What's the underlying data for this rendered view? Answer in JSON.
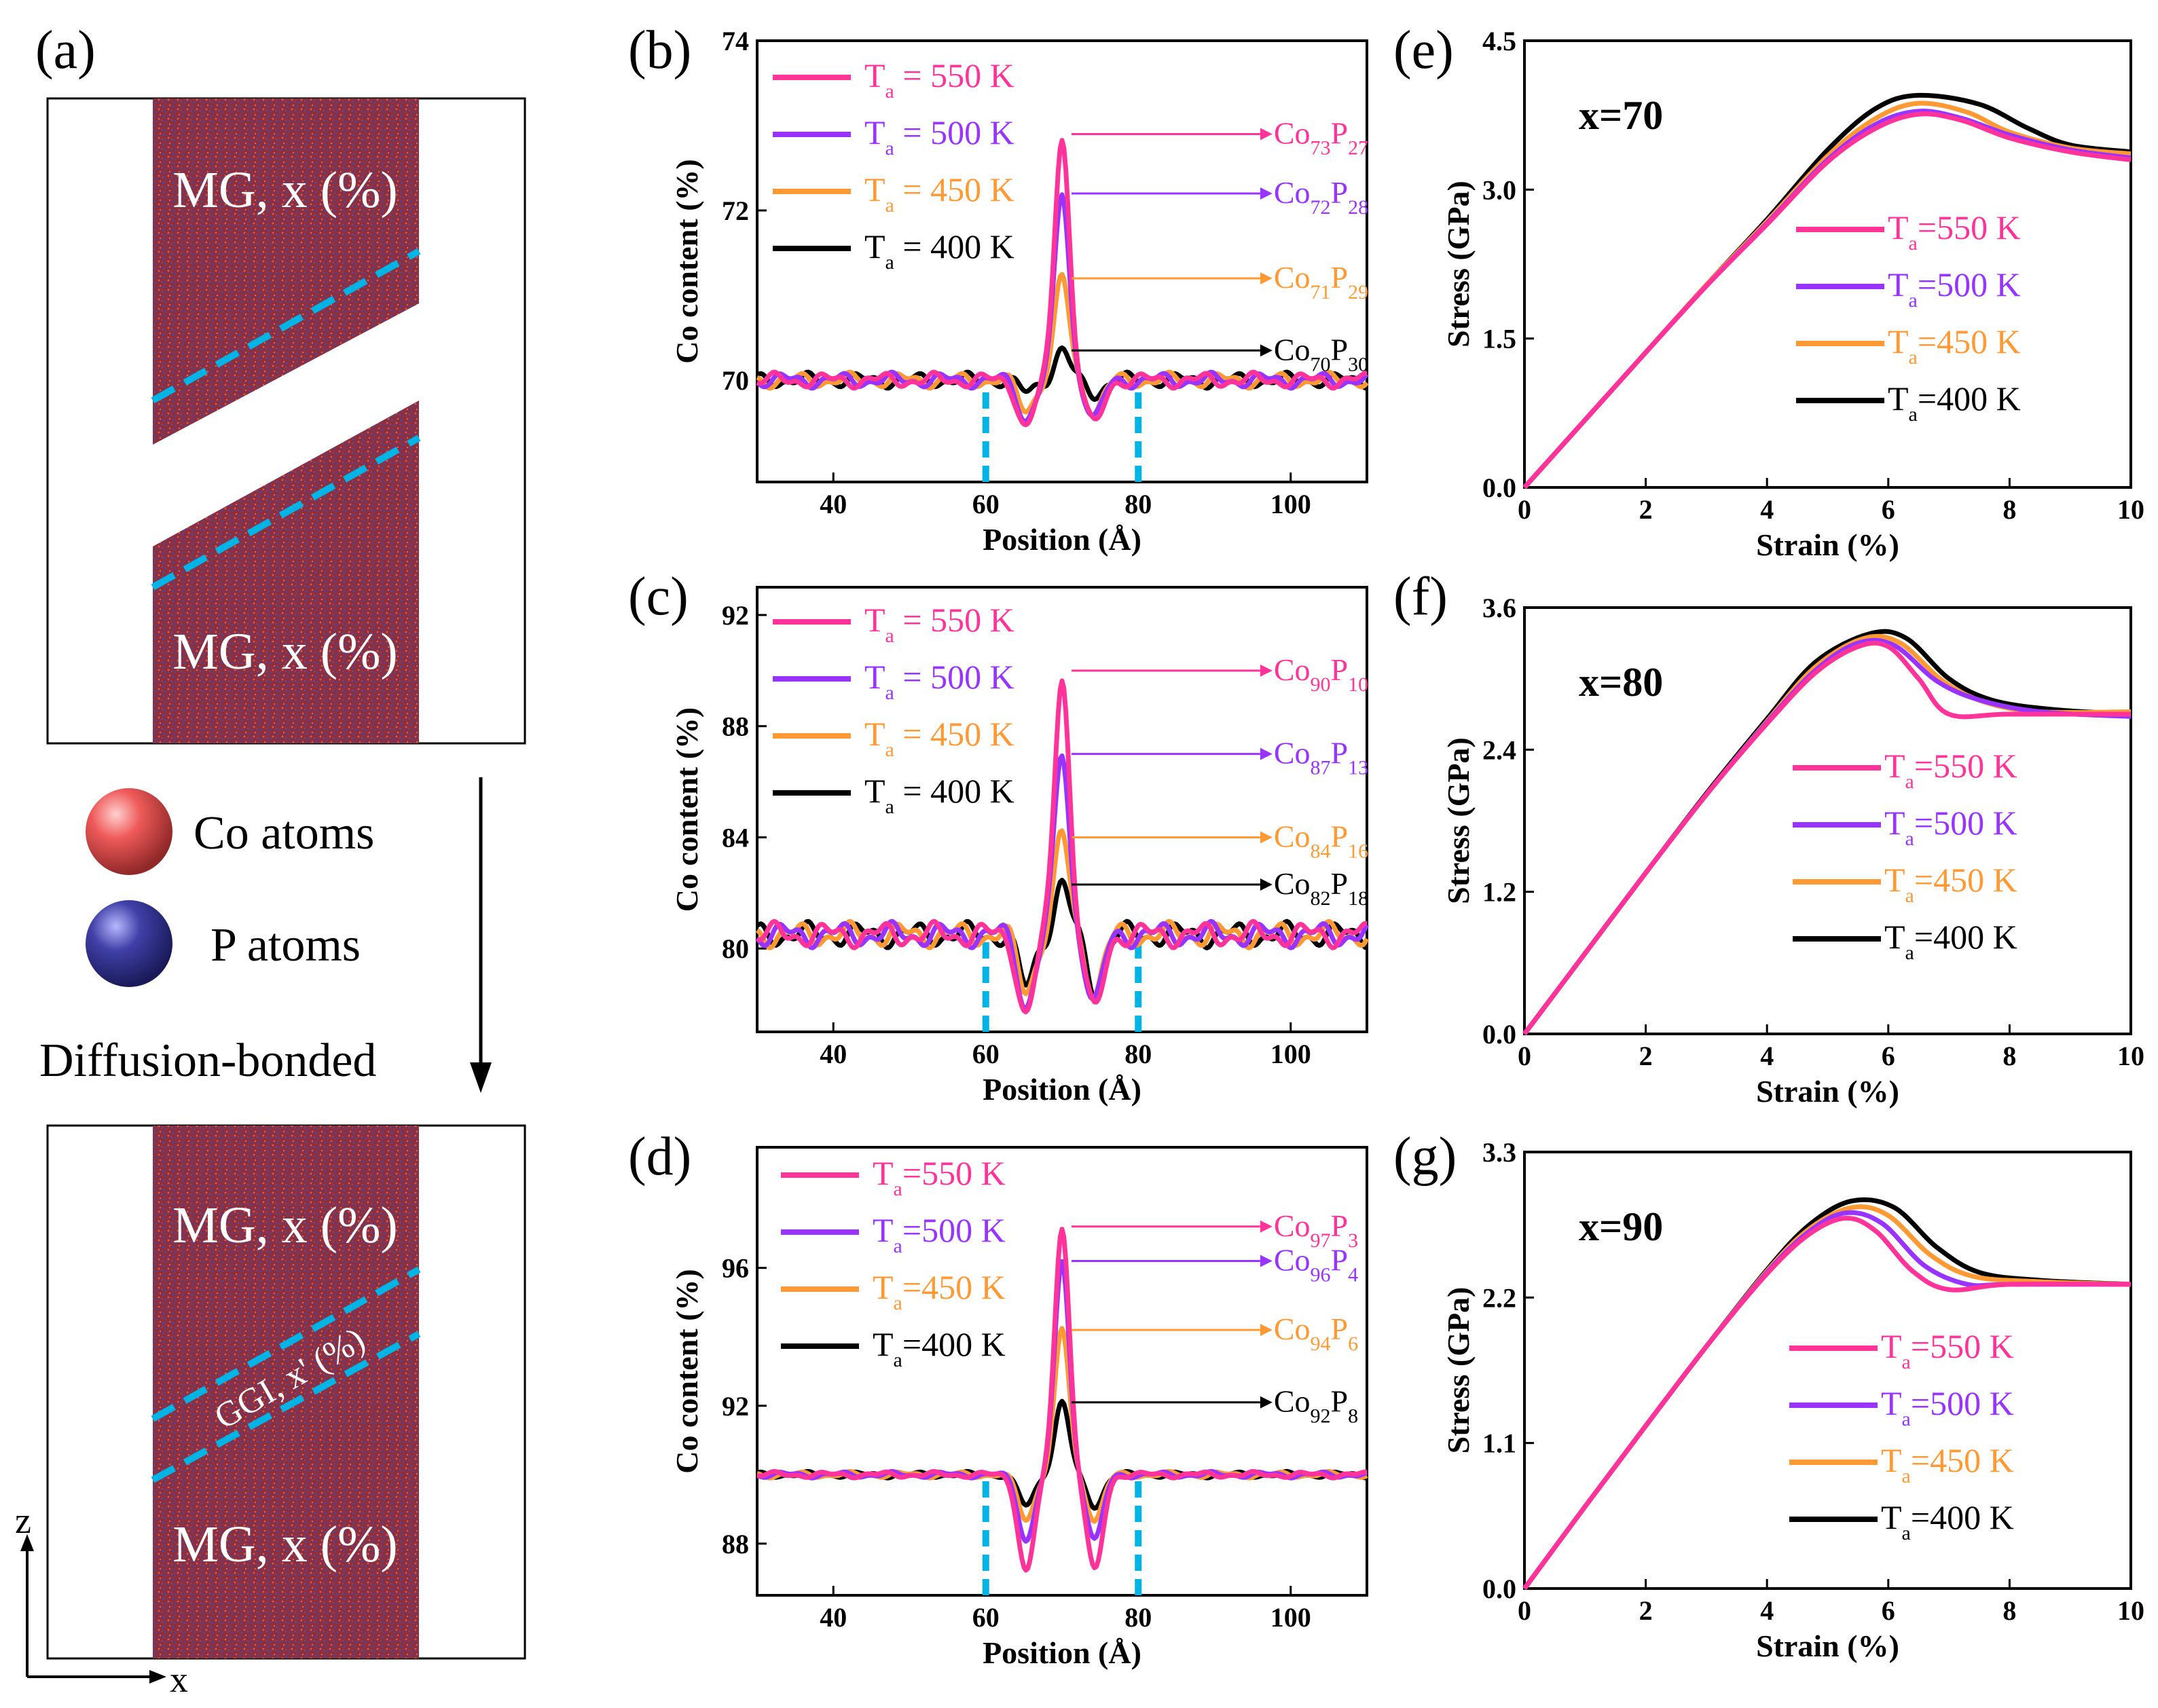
{
  "colors": {
    "T550": "#ff3399",
    "T500": "#9933ff",
    "T450": "#ff9933",
    "T400": "#000000",
    "dash": "#00b4e6",
    "mg": "#8c3040",
    "co": "#ef5a5a",
    "p": "#4040a8"
  },
  "schematic": {
    "panel_label": "(a)",
    "top_labels": [
      "MG, x (%)",
      "MG, x (%)"
    ],
    "legend": [
      {
        "label": "Co atoms",
        "icon": "co-atom-icon"
      },
      {
        "label": "P atoms",
        "icon": "p-atom-icon"
      }
    ],
    "process_label": "Diffusion-bonded",
    "bottom_labels": [
      "MG, x (%)",
      "GGI, x' (%)",
      "MG, x (%)"
    ],
    "axes": {
      "z": "z",
      "x": "x"
    }
  },
  "chart_data": [
    {
      "id": "b",
      "panel_label": "(b)",
      "type": "line",
      "xlabel": "Position (Å)",
      "ylabel": "Co content (%)",
      "xlim": [
        30,
        110
      ],
      "ylim": [
        68.8,
        74
      ],
      "xticks": [
        40,
        60,
        80,
        100
      ],
      "yticks": [
        70,
        72,
        74
      ],
      "legend": [
        {
          "key": "T550",
          "T": "T",
          "sub": "a",
          "text": " = 550 K"
        },
        {
          "key": "T500",
          "T": "T",
          "sub": "a",
          "text": " = 500 K"
        },
        {
          "key": "T450",
          "T": "T",
          "sub": "a",
          "text": " = 450 K"
        },
        {
          "key": "T400",
          "T": "T",
          "sub": "a",
          "text": " = 400 K"
        }
      ],
      "base": 70,
      "peaks": {
        "T550": 72.9,
        "T500": 72.2,
        "T450": 71.2,
        "T400": 70.35
      },
      "dips": {
        "T550": 69.45,
        "T500": 69.55,
        "T450": 69.65,
        "T400": 69.85
      },
      "wob": 0.06,
      "dashes": [
        60,
        80
      ],
      "annotations": [
        {
          "key": "T550",
          "y": 72.9,
          "co": "73",
          "p": "27"
        },
        {
          "key": "T500",
          "y": 72.2,
          "co": "72",
          "p": "28"
        },
        {
          "key": "T450",
          "y": 71.2,
          "co": "71",
          "p": "29"
        },
        {
          "key": "T400",
          "y": 70.35,
          "co": "70",
          "p": "30"
        }
      ]
    },
    {
      "id": "c",
      "panel_label": "(c)",
      "type": "line",
      "xlabel": "Position (Å)",
      "ylabel": "Co content (%)",
      "xlim": [
        30,
        110
      ],
      "ylim": [
        77,
        93
      ],
      "xticks": [
        40,
        60,
        80,
        100
      ],
      "yticks": [
        80,
        84,
        88,
        92
      ],
      "legend": [
        {
          "key": "T550",
          "T": "T",
          "sub": "a",
          "text": " = 550 K"
        },
        {
          "key": "T500",
          "T": "T",
          "sub": "a",
          "text": " = 500 K"
        },
        {
          "key": "T450",
          "T": "T",
          "sub": "a",
          "text": " = 450 K"
        },
        {
          "key": "T400",
          "T": "T",
          "sub": "a",
          "text": " = 400 K"
        }
      ],
      "base": 80.5,
      "peaks": {
        "T550": 90,
        "T500": 87,
        "T450": 84,
        "T400": 82.3
      },
      "dips": {
        "T550": 77.6,
        "T500": 78,
        "T450": 78.5,
        "T400": 78.6
      },
      "wob": 0.3,
      "dashes": [
        60,
        80
      ],
      "annotations": [
        {
          "key": "T550",
          "y": 90,
          "co": "90",
          "p": "10"
        },
        {
          "key": "T500",
          "y": 87,
          "co": "87",
          "p": "13"
        },
        {
          "key": "T450",
          "y": 84,
          "co": "84",
          "p": "16"
        },
        {
          "key": "T400",
          "y": 82.3,
          "co": "82",
          "p": "18"
        }
      ]
    },
    {
      "id": "d",
      "panel_label": "(d)",
      "type": "line",
      "xlabel": "Position (Å)",
      "ylabel": "Co content (%)",
      "xlim": [
        30,
        110
      ],
      "ylim": [
        86.5,
        99.5
      ],
      "xticks": [
        40,
        60,
        80,
        100
      ],
      "yticks": [
        88,
        92,
        96
      ],
      "legend": [
        {
          "key": "T550",
          "T": "T",
          "sub": "a",
          "text": "=550 K"
        },
        {
          "key": "T500",
          "T": "T",
          "sub": "a",
          "text": "=500 K"
        },
        {
          "key": "T450",
          "T": "T",
          "sub": "a",
          "text": "=450 K"
        },
        {
          "key": "T400",
          "T": "T",
          "sub": "a",
          "text": "=400 K"
        }
      ],
      "base": 90,
      "peaks": {
        "T550": 97.2,
        "T500": 96.2,
        "T450": 94.2,
        "T400": 92.1
      },
      "dips": {
        "T550": 87.2,
        "T500": 88.1,
        "T450": 88.7,
        "T400": 89.1
      },
      "wob": 0.06,
      "dashes": [
        60,
        80
      ],
      "annotations": [
        {
          "key": "T550",
          "y": 97.2,
          "co": "97",
          "p": "3"
        },
        {
          "key": "T500",
          "y": 96.2,
          "co": "96",
          "p": "4"
        },
        {
          "key": "T450",
          "y": 94.2,
          "co": "94",
          "p": "6"
        },
        {
          "key": "T400",
          "y": 92.1,
          "co": "92",
          "p": "8"
        }
      ]
    },
    {
      "id": "e",
      "panel_label": "(e)",
      "type": "line",
      "title": "x=70",
      "xlabel": "Strain (%)",
      "ylabel": "Stress (GPa)",
      "xlim": [
        0,
        10
      ],
      "ylim": [
        0,
        4.5
      ],
      "xticks": [
        0,
        2,
        4,
        6,
        8,
        10
      ],
      "yticks": [
        0.0,
        1.5,
        3.0,
        4.5
      ],
      "legend": [
        {
          "key": "T550",
          "T": "T",
          "sub": "a",
          "text": "=550 K"
        },
        {
          "key": "T500",
          "T": "T",
          "sub": "a",
          "text": "=500 K"
        },
        {
          "key": "T450",
          "T": "T",
          "sub": "a",
          "text": "=450 K"
        },
        {
          "key": "T400",
          "T": "T",
          "sub": "a",
          "text": "=400 K"
        }
      ],
      "series": {
        "T550": [
          [
            0,
            0
          ],
          [
            1,
            0.68
          ],
          [
            2,
            1.36
          ],
          [
            3,
            2.03
          ],
          [
            4,
            2.65
          ],
          [
            5,
            3.28
          ],
          [
            5.8,
            3.62
          ],
          [
            6.5,
            3.76
          ],
          [
            7.2,
            3.7
          ],
          [
            8,
            3.52
          ],
          [
            9,
            3.38
          ],
          [
            10,
            3.3
          ]
        ],
        "T500": [
          [
            0,
            0
          ],
          [
            1,
            0.68
          ],
          [
            2,
            1.36
          ],
          [
            3,
            2.03
          ],
          [
            4,
            2.66
          ],
          [
            5,
            3.3
          ],
          [
            5.8,
            3.66
          ],
          [
            6.5,
            3.79
          ],
          [
            7.2,
            3.72
          ],
          [
            8,
            3.55
          ],
          [
            9,
            3.4
          ],
          [
            10,
            3.32
          ]
        ],
        "T450": [
          [
            0,
            0
          ],
          [
            1,
            0.68
          ],
          [
            2,
            1.36
          ],
          [
            3,
            2.04
          ],
          [
            4,
            2.68
          ],
          [
            5,
            3.34
          ],
          [
            5.8,
            3.72
          ],
          [
            6.5,
            3.87
          ],
          [
            7.3,
            3.78
          ],
          [
            8,
            3.58
          ],
          [
            9,
            3.42
          ],
          [
            10,
            3.36
          ]
        ],
        "T400": [
          [
            0,
            0
          ],
          [
            1,
            0.68
          ],
          [
            2,
            1.36
          ],
          [
            3,
            2.04
          ],
          [
            4,
            2.7
          ],
          [
            5,
            3.4
          ],
          [
            5.8,
            3.82
          ],
          [
            6.5,
            3.95
          ],
          [
            7.5,
            3.86
          ],
          [
            8.3,
            3.62
          ],
          [
            9,
            3.45
          ],
          [
            10,
            3.38
          ]
        ]
      }
    },
    {
      "id": "f",
      "panel_label": "(f)",
      "type": "line",
      "title": "x=80",
      "xlabel": "Strain (%)",
      "ylabel": "Stress (GPa)",
      "xlim": [
        0,
        10
      ],
      "ylim": [
        0,
        3.6
      ],
      "xticks": [
        0,
        2,
        4,
        6,
        8,
        10
      ],
      "yticks": [
        0.0,
        1.2,
        2.4,
        3.6
      ],
      "legend": [
        {
          "key": "T550",
          "T": "T",
          "sub": "a",
          "text": "=550 K"
        },
        {
          "key": "T500",
          "T": "T",
          "sub": "a",
          "text": "=500 K"
        },
        {
          "key": "T450",
          "T": "T",
          "sub": "a",
          "text": "=450 K"
        },
        {
          "key": "T400",
          "T": "T",
          "sub": "a",
          "text": "=400 K"
        }
      ],
      "series": {
        "T550": [
          [
            0,
            0
          ],
          [
            1,
            0.68
          ],
          [
            2,
            1.36
          ],
          [
            3,
            2.02
          ],
          [
            4,
            2.62
          ],
          [
            4.8,
            3.05
          ],
          [
            5.5,
            3.27
          ],
          [
            6.0,
            3.27
          ],
          [
            6.5,
            3.0
          ],
          [
            7.0,
            2.7
          ],
          [
            8,
            2.7
          ],
          [
            10,
            2.7
          ]
        ],
        "T500": [
          [
            0,
            0
          ],
          [
            1,
            0.68
          ],
          [
            2,
            1.36
          ],
          [
            3,
            2.02
          ],
          [
            4,
            2.63
          ],
          [
            4.8,
            3.07
          ],
          [
            5.5,
            3.3
          ],
          [
            6.1,
            3.28
          ],
          [
            6.8,
            2.98
          ],
          [
            7.5,
            2.82
          ],
          [
            8.5,
            2.72
          ],
          [
            10,
            2.68
          ]
        ],
        "T450": [
          [
            0,
            0
          ],
          [
            1,
            0.68
          ],
          [
            2,
            1.36
          ],
          [
            3,
            2.02
          ],
          [
            4,
            2.64
          ],
          [
            4.8,
            3.1
          ],
          [
            5.6,
            3.34
          ],
          [
            6.2,
            3.3
          ],
          [
            6.9,
            2.98
          ],
          [
            7.6,
            2.8
          ],
          [
            8.5,
            2.72
          ],
          [
            10,
            2.72
          ]
        ],
        "T400": [
          [
            0,
            0
          ],
          [
            1,
            0.68
          ],
          [
            2,
            1.36
          ],
          [
            3,
            2.03
          ],
          [
            4,
            2.66
          ],
          [
            4.8,
            3.14
          ],
          [
            5.7,
            3.38
          ],
          [
            6.3,
            3.34
          ],
          [
            7.0,
            3.0
          ],
          [
            7.7,
            2.82
          ],
          [
            8.7,
            2.74
          ],
          [
            10,
            2.7
          ]
        ]
      }
    },
    {
      "id": "g",
      "panel_label": "(g)",
      "type": "line",
      "title": "x=90",
      "xlabel": "Strain (%)",
      "ylabel": "Stress (GPa)",
      "xlim": [
        0,
        10
      ],
      "ylim": [
        0,
        3.3
      ],
      "xticks": [
        0,
        2,
        4,
        6,
        8,
        10
      ],
      "yticks": [
        0.0,
        1.1,
        2.2,
        3.3
      ],
      "legend": [
        {
          "key": "T550",
          "T": "T",
          "sub": "a",
          "text": "=550 K"
        },
        {
          "key": "T500",
          "T": "T",
          "sub": "a",
          "text": "=500 K"
        },
        {
          "key": "T450",
          "T": "T",
          "sub": "a",
          "text": "=450 K"
        },
        {
          "key": "T400",
          "T": "T",
          "sub": "a",
          "text": "=400 K"
        }
      ],
      "series": {
        "T550": [
          [
            0,
            0
          ],
          [
            1,
            0.62
          ],
          [
            2,
            1.23
          ],
          [
            3,
            1.83
          ],
          [
            4,
            2.38
          ],
          [
            4.7,
            2.68
          ],
          [
            5.3,
            2.8
          ],
          [
            5.8,
            2.7
          ],
          [
            6.4,
            2.4
          ],
          [
            7.0,
            2.26
          ],
          [
            8,
            2.3
          ],
          [
            10,
            2.3
          ]
        ],
        "T500": [
          [
            0,
            0
          ],
          [
            1,
            0.62
          ],
          [
            2,
            1.23
          ],
          [
            3,
            1.83
          ],
          [
            4,
            2.39
          ],
          [
            4.7,
            2.7
          ],
          [
            5.3,
            2.84
          ],
          [
            5.9,
            2.76
          ],
          [
            6.6,
            2.44
          ],
          [
            7.3,
            2.3
          ],
          [
            8,
            2.3
          ],
          [
            10,
            2.3
          ]
        ],
        "T450": [
          [
            0,
            0
          ],
          [
            1,
            0.62
          ],
          [
            2,
            1.23
          ],
          [
            3,
            1.83
          ],
          [
            4,
            2.4
          ],
          [
            4.7,
            2.72
          ],
          [
            5.4,
            2.88
          ],
          [
            6.0,
            2.82
          ],
          [
            6.7,
            2.52
          ],
          [
            7.4,
            2.36
          ],
          [
            8.5,
            2.32
          ],
          [
            10,
            2.3
          ]
        ],
        "T400": [
          [
            0,
            0
          ],
          [
            1,
            0.62
          ],
          [
            2,
            1.23
          ],
          [
            3,
            1.83
          ],
          [
            4,
            2.41
          ],
          [
            4.7,
            2.75
          ],
          [
            5.4,
            2.93
          ],
          [
            6.1,
            2.88
          ],
          [
            6.8,
            2.58
          ],
          [
            7.5,
            2.39
          ],
          [
            8.5,
            2.33
          ],
          [
            10,
            2.3
          ]
        ]
      }
    }
  ]
}
